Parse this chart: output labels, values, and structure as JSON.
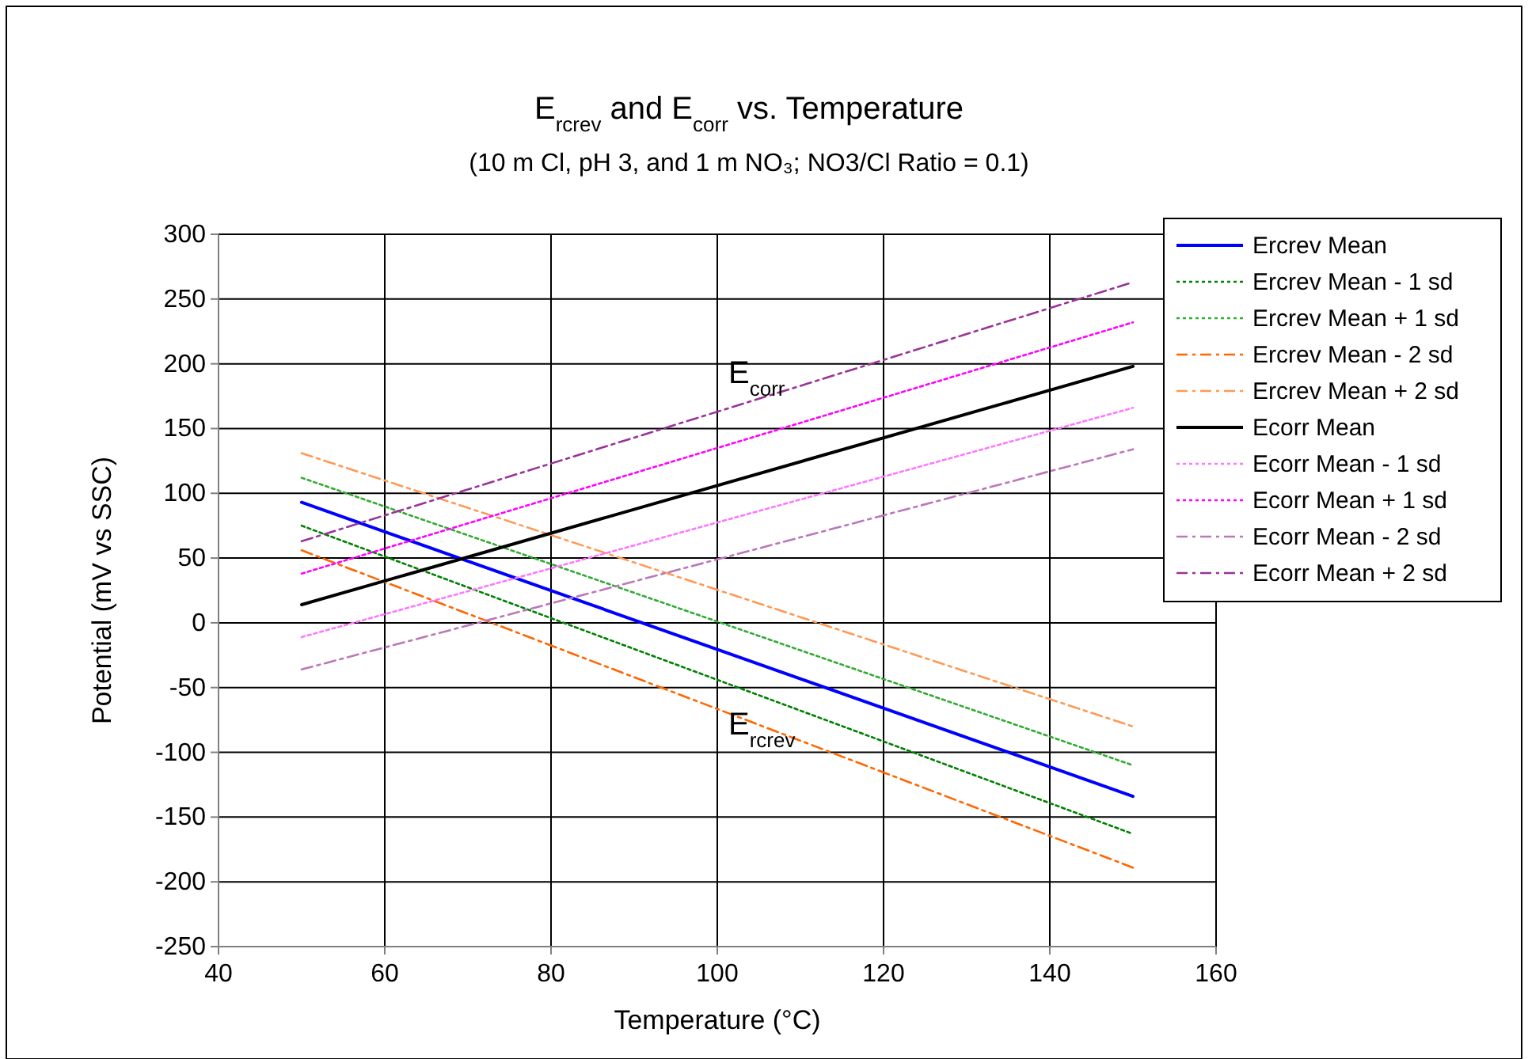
{
  "chart_data": {
    "type": "line",
    "title": "E$_{rcrev}$ and E$_{corr}$ vs. Temperature",
    "subtitle": "(10 m Cl, pH 3, and 1 m NO₃; NO3/Cl Ratio = 0.1)",
    "xlabel": "Temperature (°C)",
    "ylabel": "Potential (mV vs SSC)",
    "x": [
      50,
      150
    ],
    "series": [
      {
        "name": "Ercrev Mean",
        "color": "#0000ff",
        "values": [
          93,
          -134
        ],
        "line_style": "solid"
      },
      {
        "name": "Ercrev Mean - 1 sd",
        "color": "#008000",
        "values": [
          75,
          -163
        ],
        "line_style": "dotted"
      },
      {
        "name": "Ercrev Mean + 1 sd",
        "color": "#33aa33",
        "values": [
          112,
          -110
        ],
        "line_style": "dotted"
      },
      {
        "name": "Ercrev Mean - 2 sd",
        "color": "#ff6600",
        "values": [
          56,
          -189
        ],
        "line_style": "dashed"
      },
      {
        "name": "Ercrev Mean + 2 sd",
        "color": "#ff9955",
        "values": [
          131,
          -80
        ],
        "line_style": "dashed"
      },
      {
        "name": "Ecorr Mean",
        "color": "#000000",
        "values": [
          14,
          198
        ],
        "line_style": "solid"
      },
      {
        "name": "Ecorr Mean - 1 sd",
        "color": "#ff77ff",
        "values": [
          -11,
          166
        ],
        "line_style": "dotted"
      },
      {
        "name": "Ecorr Mean + 1 sd",
        "color": "#ff00ff",
        "values": [
          38,
          232
        ],
        "line_style": "dotted"
      },
      {
        "name": "Ecorr Mean - 2 sd",
        "color": "#bb77bb",
        "values": [
          -36,
          134
        ],
        "line_style": "dashed"
      },
      {
        "name": "Ecorr Mean + 2 sd",
        "color": "#993399",
        "values": [
          63,
          263
        ],
        "line_style": "dashed"
      }
    ],
    "xlim": [
      40,
      160
    ],
    "xticks": [
      40,
      60,
      80,
      100,
      120,
      140,
      160
    ],
    "ylim": [
      -250,
      300
    ],
    "yticks": [
      -250,
      -200,
      -150,
      -100,
      -50,
      0,
      50,
      100,
      150,
      200,
      250,
      300
    ],
    "grid": true,
    "legend": "right",
    "marker": "none",
    "annotations": [
      "E$_{corr}$",
      "E$_{rcrev}$"
    ]
  }
}
